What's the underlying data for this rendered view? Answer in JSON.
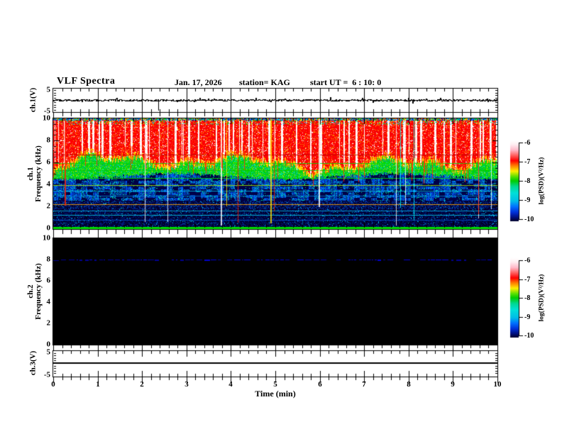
{
  "header": {
    "title": "VLF Spectra",
    "date": "Jan. 17, 2026",
    "station": "station= KAG",
    "start_ut": "start UT =  6 : 10: 0"
  },
  "xaxis": {
    "label": "Time (min)",
    "min": 0,
    "max": 10,
    "major_ticks": [
      0,
      1,
      2,
      3,
      4,
      5,
      6,
      7,
      8,
      9,
      10
    ],
    "minor_step_min": 0.2
  },
  "panels": {
    "ch1_wave": {
      "ylabel": "ch.1(V)",
      "ymin": -5,
      "ymax": 5,
      "yticks": [
        5,
        -5
      ]
    },
    "ch1_spec": {
      "ylabel_line1": "ch.1",
      "ylabel_line2": "Frequency (kHz)",
      "ymin": 0,
      "ymax": 10,
      "yticks": [
        10,
        8,
        6,
        4,
        2,
        0
      ]
    },
    "ch2_spec": {
      "ylabel_line1": "ch.2",
      "ylabel_line2": "Frequency (kHz)",
      "ymin": 0,
      "ymax": 10,
      "yticks": [
        10,
        8,
        6,
        4,
        2,
        0
      ]
    },
    "ch3_wave": {
      "ylabel": "ch.3(V)",
      "ymin": -5,
      "ymax": 5,
      "yticks": [
        5,
        -5
      ]
    }
  },
  "colorbar": {
    "label": "log(PSD)(V²/Hz)",
    "ticks": [
      -6,
      -7,
      -8,
      -9,
      -10
    ],
    "stops": [
      [
        0,
        "#ffffff"
      ],
      [
        0.05,
        "#ffeef2"
      ],
      [
        0.12,
        "#ffb8c8"
      ],
      [
        0.18,
        "#ff6868"
      ],
      [
        0.25,
        "#ff0000"
      ],
      [
        0.31,
        "#ff7800"
      ],
      [
        0.38,
        "#ffee00"
      ],
      [
        0.45,
        "#55e000"
      ],
      [
        0.5,
        "#00cc00"
      ],
      [
        0.57,
        "#00d890"
      ],
      [
        0.65,
        "#00e0d8"
      ],
      [
        0.75,
        "#00bce8"
      ],
      [
        0.82,
        "#0070ff"
      ],
      [
        0.89,
        "#0030d8"
      ],
      [
        0.95,
        "#001080"
      ],
      [
        1,
        "#000028"
      ]
    ]
  },
  "chart_data": [
    {
      "type": "line",
      "panel": "ch1_wave",
      "x_range": [
        0,
        10
      ],
      "y_range": [
        -5,
        5
      ],
      "description": "ch.1 voltage: noisy trace fluctuating tightly around 0 V for the full 10 minutes, one strong negative spike near 2.4 min",
      "baseline_V": 0,
      "noise_amp_V": 0.5,
      "spikes": [
        {
          "t_min": 2.36,
          "v_V": -4.2
        }
      ],
      "seed": 20260117
    },
    {
      "type": "heatmap",
      "panel": "ch1_spec",
      "x_range": [
        0,
        10
      ],
      "f_range_kHz": [
        0,
        10
      ],
      "z_range": [
        -10,
        -6
      ],
      "z_label": "log(PSD)(V²/Hz)",
      "description": "ch.1 VLF spectrogram: intense sferic band (near -6, red with saturated white vertical striations) above ~6 kHz with ragged lower edge; yellow fringe ~5.9-6.2 kHz; green band (~-8) 4.8-5.9 kHz; structured blue band (~-9) 2.5-4.8 kHz with cyan stripes and dark patches; dark (~-10) below 2.5 kHz; narrow horizontal interference lines; bright full-height vertical streaks from strong sferics; green line at 0 kHz edge",
      "bands": [
        {
          "f_kHz": [
            9.83,
            10
          ],
          "level": "mixed",
          "colors": [
            "#0040ff",
            "#00c8ff",
            "#00dc00",
            "#ffd000",
            "#ff4000",
            "#0000a0"
          ]
        },
        {
          "f_kHz": [
            6.2,
            9.83
          ],
          "level": -6.3,
          "base": "#ff0000",
          "variants": [
            "#e61010",
            "#ff5420",
            "#ffa000"
          ],
          "saturated_streaks": "#ffffff",
          "streak_fraction": 0.3
        },
        {
          "f_kHz": [
            5.85,
            6.2
          ],
          "level": -7.3,
          "colors": [
            "#ffe000",
            "#ff8000"
          ]
        },
        {
          "f_kHz": [
            4.75,
            5.85
          ],
          "level": -8,
          "colors": [
            "#00d800",
            "#20e020",
            "#00be5a",
            "#00a896",
            "#b4e600",
            "#00e6e6"
          ]
        },
        {
          "f_kHz": [
            2.55,
            4.75
          ],
          "level": -9,
          "colors": [
            "#0040c8",
            "#0030a0",
            "#001e78",
            "#00b0e0"
          ],
          "dark_patches": "#000048"
        },
        {
          "f_kHz": [
            0.16,
            2.55
          ],
          "level": -9.8,
          "colors": [
            "#000030",
            "#000a54",
            "#002896"
          ],
          "speckle": "#00b4e0"
        },
        {
          "f_kHz": [
            0,
            0.16
          ],
          "level": -8,
          "colors": [
            "#00dd00"
          ]
        }
      ],
      "h_lines": [
        {
          "f_kHz": 6.7,
          "color": "#c00000"
        },
        {
          "f_kHz": 5.95,
          "color": "#00dc00"
        },
        {
          "f_kHz": 5.3,
          "color": "#00cc00"
        },
        {
          "f_kHz": 4.6,
          "color": "#00dc00"
        },
        {
          "f_kHz": 3.95,
          "color": "#a8e000"
        },
        {
          "f_kHz": 3.4,
          "color": "#00c0e0"
        },
        {
          "f_kHz": 2.95,
          "color": "#0080d0"
        },
        {
          "f_kHz": 2.2,
          "color": "#ffa000"
        },
        {
          "f_kHz": 1.6,
          "color": "#00b0e0"
        },
        {
          "f_kHz": 1.25,
          "color": "#00c8e8"
        },
        {
          "f_kHz": 0.75,
          "color": "#0050d0"
        }
      ],
      "v_streaks": {
        "count": 16,
        "colors": [
          "#ffffff",
          "#ff2000",
          "#00dc00",
          "#00ffff",
          "#ffe000"
        ]
      },
      "red_tips": {
        "count": 60,
        "color": "#ff3000"
      },
      "seed": 20260117
    },
    {
      "type": "heatmap",
      "panel": "ch2_spec",
      "x_range": [
        0,
        10
      ],
      "f_range_kHz": [
        0,
        10
      ],
      "z_range": [
        -10,
        -6
      ],
      "z_label": "log(PSD)(V²/Hz)",
      "description": "ch.2 spectrogram: background at/below -10 (black) everywhere except a faint broken narrowband blue emission line at 8 kHz",
      "background": "#000000",
      "emission_line": {
        "f_kHz": 8.0,
        "color": "#0000cc",
        "style": "broken-dashed"
      },
      "seed": 20260117
    },
    {
      "type": "line",
      "panel": "ch3_wave",
      "x_range": [
        0,
        10
      ],
      "y_range": [
        -5,
        5
      ],
      "description": "ch.3 voltage: perfectly flat line at 0 V",
      "baseline_V": 0,
      "flat": true
    }
  ]
}
